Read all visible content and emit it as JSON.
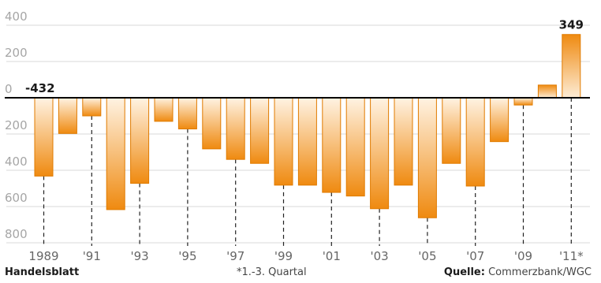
{
  "chart_data": {
    "type": "bar",
    "categories": [
      "1989",
      "1990",
      "1991",
      "1992",
      "1993",
      "1994",
      "1995",
      "1996",
      "1997",
      "1998",
      "1999",
      "2000",
      "2001",
      "2002",
      "2003",
      "2004",
      "2005",
      "2006",
      "2007",
      "2008",
      "2009",
      "2010",
      "2011"
    ],
    "values": [
      -432,
      -197,
      -100,
      -617,
      -472,
      -130,
      -172,
      -282,
      -340,
      -362,
      -482,
      -482,
      -522,
      -542,
      -612,
      -482,
      -662,
      -362,
      -487,
      -242,
      -40,
      70,
      349
    ],
    "x_tick_labels": [
      "1989",
      "'91",
      "'93",
      "'95",
      "'97",
      "'99",
      "'01",
      "'03",
      "'05",
      "'07",
      "'09",
      "'11*"
    ],
    "y_tick_labels": [
      "400",
      "200",
      "0",
      "200",
      "400",
      "600",
      "800"
    ],
    "y_tick_values": [
      400,
      200,
      0,
      -200,
      -400,
      -600,
      -800
    ],
    "data_labels": [
      {
        "index": 0,
        "text": "-432"
      },
      {
        "index": 22,
        "text": "349"
      }
    ],
    "ylim": [
      -800,
      400
    ],
    "grid": true,
    "colors": {
      "bar_top": "#fdecd6",
      "bar_bottom": "#ef8a10",
      "bar_edge": "#e07b00",
      "grid": "#d9d9d9",
      "zero_line": "#000000"
    }
  },
  "footer": {
    "brand": "Handelsblatt",
    "footnote": "*1.-3. Quartal",
    "source_label": "Quelle:",
    "source_value": "Commerzbank/WGC"
  }
}
